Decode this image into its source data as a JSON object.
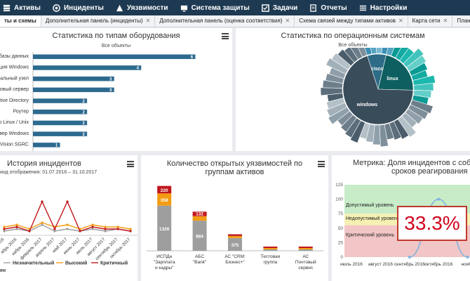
{
  "nav": {
    "items": [
      {
        "label": "Активы",
        "icon": "assets-icon"
      },
      {
        "label": "Инциденты",
        "icon": "incident-icon"
      },
      {
        "label": "Уязвимости",
        "icon": "warning-icon"
      },
      {
        "label": "Система защиты",
        "icon": "protection-icon"
      },
      {
        "label": "Задачи",
        "icon": "tasks-icon"
      },
      {
        "label": "Отчеты",
        "icon": "reports-icon"
      },
      {
        "label": "Настройки",
        "icon": "settings-icon"
      }
    ]
  },
  "tabs": [
    {
      "label": "ты и схемы",
      "active": true
    },
    {
      "label": "Дополнительная панель (инциденты)"
    },
    {
      "label": "Дополнительная панель (оценка соответствия)"
    },
    {
      "label": "Схема связей между типами активов"
    },
    {
      "label": "Карта сети"
    },
    {
      "label": "План помещения в г. Мос"
    }
  ],
  "panels": {
    "equipment": {
      "title": "Статистика по типам оборудования",
      "subtitle": "Все объекты",
      "chart_data": {
        "type": "bar",
        "orientation": "horizontal",
        "categories": [
          "базы данных",
          "нция Windows",
          "ониальный узел",
          "товый сервер",
          "ctive Directory",
          "Роутер",
          "р Linux / Unix",
          "рвер Windows",
          "k-Vision SGRC"
        ],
        "values": [
          6,
          4,
          3,
          3,
          2,
          2,
          2,
          2,
          1
        ],
        "xlim": [
          0,
          6.3
        ],
        "color": "#2d6a8f"
      }
    },
    "os": {
      "title": "Статистика по операционным системам",
      "subtitle": "Все объекты",
      "chart_data": {
        "type": "pie",
        "inner": [
          {
            "label": "windows",
            "value": 64,
            "color": "#394c5a"
          },
          {
            "label": "linux",
            "value": 20,
            "color": "#0e5f60"
          },
          {
            "label": "cisco",
            "value": 8,
            "color": "#2e6b86"
          }
        ],
        "colors_outer": [
          "#0a9a93",
          "#13aaa2",
          "#1cb8ae",
          "#42c4bc",
          "#64cfc9",
          "#4b5d6b",
          "#5c6e7b",
          "#6d7e8a",
          "#7f8f9a",
          "#90a0aa",
          "#a2b0b9",
          "#b4c0c7",
          "#3b8fb4",
          "#56a2c3",
          "#7bb8d2"
        ]
      }
    },
    "history": {
      "title": "История инцидентов",
      "period": "иод отображения: 01.07.2016 – 31.10.2017",
      "legend": [
        {
          "label": "Незначительный",
          "color": "#9e9e9e"
        },
        {
          "label": "Высокий",
          "color": "#f39c12"
        },
        {
          "label": "Критичный",
          "color": "#c0171d"
        }
      ],
      "chart_data": {
        "type": "line",
        "x": [
          "2016",
          "ябрь 2016",
          "кабрь 2016",
          "февраль 2017",
          "апрель 2017",
          "май 2017",
          "июнь 2017",
          "июль 2017",
          "август 2017",
          "сентябрь 2017",
          "октябрь 2017"
        ],
        "series": [
          {
            "name": "Незначительный",
            "values": [
              2,
              3,
              2,
              5,
              2,
              3,
              2,
              3,
              2,
              3,
              2
            ]
          },
          {
            "name": "Высокий",
            "values": [
              4,
              5,
              3,
              6,
              4,
              5,
              3,
              5,
              4,
              4,
              3
            ]
          },
          {
            "name": "Критичный",
            "values": [
              3,
              4,
              2,
              16,
              3,
              16,
              2,
              4,
              3,
              3,
              2
            ]
          }
        ],
        "ylim": [
          0,
          20
        ]
      }
    },
    "vulns": {
      "title": "Количество открытых уязвимостей по группам активов",
      "chart_data": {
        "type": "bar",
        "stacked": true,
        "categories": [
          "ИСПДн \"Зарплата и кадры\"",
          "АБС \"Bank\"",
          "АС \"CRM: Бизнес+\"",
          "Тестовая группа",
          "АС Почтовый сервис"
        ],
        "series": [
          {
            "name": "Незначительный",
            "color": "#9e9e9e",
            "values": [
              1326,
              884,
              375,
              40,
              20
            ]
          },
          {
            "name": "Высокий",
            "color": "#f39c12",
            "values": [
              358,
              132,
              60,
              40,
              15
            ]
          },
          {
            "name": "Критичный",
            "color": "#c0171d",
            "values": [
              220,
              132,
              50,
              30,
              10
            ]
          }
        ],
        "data_labels": [
          [
            "1326",
            "358",
            "220"
          ],
          [
            "884",
            "",
            "132"
          ],
          [
            "375",
            "",
            ""
          ],
          [
            "",
            "",
            ""
          ],
          [
            "",
            "",
            ""
          ]
        ],
        "ylim": [
          0,
          2000
        ]
      }
    },
    "metric": {
      "title": "Метрика: Доля инцидентов с собл",
      "title2": "сроков реагирования",
      "value": "33.3%",
      "bands": [
        {
          "label": "Допустимый уровень",
          "color": "#c7ecc7"
        },
        {
          "label": "Недопустимый уровень",
          "color": "#f6f1b3"
        },
        {
          "label": "Критический уровень",
          "color": "#f2c6c6"
        }
      ],
      "chart_data": {
        "type": "line",
        "x": [
          "июль 2016",
          "август 2016",
          "сентябрь 2016",
          "октябрь 2016",
          "ноябр"
        ],
        "yticks": [
          125,
          100,
          75,
          50,
          25,
          0
        ],
        "values": [
          null,
          null,
          0,
          100,
          0
        ],
        "ylim": [
          0,
          125
        ]
      }
    }
  }
}
